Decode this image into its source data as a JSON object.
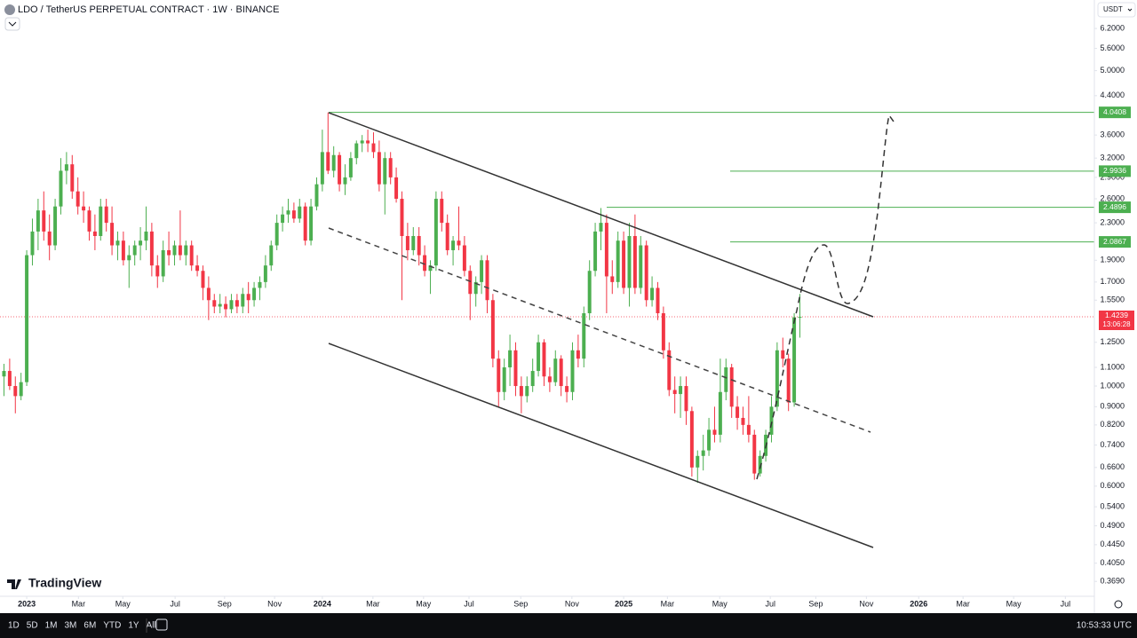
{
  "chart_data": {
    "type": "candlestick",
    "title": "LDO / TetherUS PERPETUAL CONTRACT · 1W · BINANCE",
    "currency": "USDT",
    "brand": "TradingView",
    "timeframes": [
      "1D",
      "5D",
      "1M",
      "3M",
      "6M",
      "YTD",
      "1Y",
      "All"
    ],
    "clock": "10:53:33 UTC",
    "log_scale": true,
    "up_color": "#4caf50",
    "down_color": "#f23645",
    "level_color": "#4caf50",
    "ylim": [
      0.342,
      7.17
    ],
    "yticks": [
      {
        "value": 6.2,
        "label": "6.2000"
      },
      {
        "value": 5.6,
        "label": "5.6000"
      },
      {
        "value": 5.0,
        "label": "5.0000"
      },
      {
        "value": 4.4,
        "label": "4.4000"
      },
      {
        "value": 3.6,
        "label": "3.6000"
      },
      {
        "value": 3.2,
        "label": "3.2000"
      },
      {
        "value": 2.9,
        "label": "2.9000"
      },
      {
        "value": 2.6,
        "label": "2.6000"
      },
      {
        "value": 2.3,
        "label": "2.3000"
      },
      {
        "value": 1.9,
        "label": "1.9000"
      },
      {
        "value": 1.7,
        "label": "1.7000"
      },
      {
        "value": 1.55,
        "label": "1.5500"
      },
      {
        "value": 1.25,
        "label": "1.2500"
      },
      {
        "value": 1.1,
        "label": "1.1000"
      },
      {
        "value": 1.0,
        "label": "1.0000"
      },
      {
        "value": 0.9,
        "label": "0.9000"
      },
      {
        "value": 0.82,
        "label": "0.8200"
      },
      {
        "value": 0.74,
        "label": "0.7400"
      },
      {
        "value": 0.66,
        "label": "0.6600"
      },
      {
        "value": 0.6,
        "label": "0.6000"
      },
      {
        "value": 0.54,
        "label": "0.5400"
      },
      {
        "value": 0.49,
        "label": "0.4900"
      },
      {
        "value": 0.445,
        "label": "0.4450"
      },
      {
        "value": 0.405,
        "label": "0.4050"
      },
      {
        "value": 0.369,
        "label": "0.3690"
      }
    ],
    "xlim": [
      -4.7,
      187.8
    ],
    "xticks": [
      {
        "value": 0,
        "label": "2023"
      },
      {
        "value": 9.1,
        "label": "Mar"
      },
      {
        "value": 16.9,
        "label": "May"
      },
      {
        "value": 26.1,
        "label": "Jul"
      },
      {
        "value": 34.8,
        "label": "Sep"
      },
      {
        "value": 43.6,
        "label": "Nov"
      },
      {
        "value": 52,
        "label": "2024"
      },
      {
        "value": 60.9,
        "label": "Mar"
      },
      {
        "value": 69.8,
        "label": "May"
      },
      {
        "value": 77.8,
        "label": "Jul"
      },
      {
        "value": 86.9,
        "label": "Sep"
      },
      {
        "value": 95.9,
        "label": "Nov"
      },
      {
        "value": 105,
        "label": "2025"
      },
      {
        "value": 112.7,
        "label": "Mar"
      },
      {
        "value": 121.9,
        "label": "May"
      },
      {
        "value": 130.8,
        "label": "Jul"
      },
      {
        "value": 138.8,
        "label": "Sep"
      },
      {
        "value": 147.7,
        "label": "Nov"
      },
      {
        "value": 156.9,
        "label": "2026"
      },
      {
        "value": 164.7,
        "label": "Mar"
      },
      {
        "value": 173.6,
        "label": "May"
      },
      {
        "value": 182.7,
        "label": "Jul"
      }
    ],
    "levels": [
      4.0408,
      2.9936,
      2.4896,
      2.0867
    ],
    "last_price": 1.4239,
    "countdown": "13:06:28",
    "x": [
      -4,
      -3,
      -2,
      -1,
      0,
      1,
      2,
      3,
      4,
      5,
      6,
      7,
      8,
      9,
      10,
      11,
      12,
      13,
      14,
      15,
      16,
      17,
      18,
      19,
      20,
      21,
      22,
      23,
      24,
      25,
      26,
      27,
      28,
      29,
      30,
      31,
      32,
      33,
      34,
      35,
      36,
      37,
      38,
      39,
      40,
      41,
      42,
      43,
      44,
      45,
      46,
      47,
      48,
      49,
      50,
      51,
      52,
      53,
      54,
      55,
      56,
      57,
      58,
      59,
      60,
      61,
      62,
      63,
      64,
      65,
      66,
      67,
      68,
      69,
      70,
      71,
      72,
      73,
      74,
      75,
      76,
      77,
      78,
      79,
      80,
      81,
      82,
      83,
      84,
      85,
      86,
      87,
      88,
      89,
      90,
      91,
      92,
      93,
      94,
      95,
      96,
      97,
      98,
      99,
      100,
      101,
      102,
      103,
      104,
      105,
      106,
      107,
      108,
      109,
      110,
      111,
      112,
      113,
      114,
      115,
      116,
      117,
      118,
      119,
      120,
      121,
      122,
      123,
      124,
      125,
      126,
      127,
      128,
      129,
      130,
      131,
      132,
      133,
      134,
      135,
      136
    ],
    "ohlc": [
      [
        1.05,
        1.12,
        0.95,
        1.08
      ],
      [
        1.08,
        1.15,
        0.98,
        1.0
      ],
      [
        1.0,
        1.05,
        0.87,
        0.95
      ],
      [
        0.95,
        1.07,
        0.93,
        1.02
      ],
      [
        1.02,
        2.0,
        1.0,
        1.95
      ],
      [
        1.95,
        2.35,
        1.85,
        2.2
      ],
      [
        2.2,
        2.6,
        2.0,
        2.45
      ],
      [
        2.45,
        2.7,
        2.1,
        2.2
      ],
      [
        2.2,
        2.4,
        1.9,
        2.05
      ],
      [
        2.05,
        2.6,
        2.0,
        2.5
      ],
      [
        2.5,
        3.2,
        2.4,
        3.0
      ],
      [
        3.0,
        3.3,
        2.8,
        3.1
      ],
      [
        3.1,
        3.25,
        2.6,
        2.7
      ],
      [
        2.7,
        2.9,
        2.4,
        2.5
      ],
      [
        2.5,
        2.7,
        2.3,
        2.45
      ],
      [
        2.45,
        2.5,
        2.1,
        2.2
      ],
      [
        2.2,
        2.4,
        2.0,
        2.15
      ],
      [
        2.15,
        2.6,
        2.1,
        2.5
      ],
      [
        2.5,
        2.6,
        2.2,
        2.3
      ],
      [
        2.3,
        2.5,
        1.95,
        2.05
      ],
      [
        2.05,
        2.2,
        1.9,
        2.1
      ],
      [
        2.1,
        2.2,
        1.85,
        1.9
      ],
      [
        1.9,
        2.05,
        1.65,
        1.95
      ],
      [
        1.95,
        2.1,
        1.85,
        2.05
      ],
      [
        2.05,
        2.25,
        1.9,
        2.1
      ],
      [
        2.1,
        2.5,
        2.0,
        2.2
      ],
      [
        2.2,
        2.3,
        1.75,
        1.85
      ],
      [
        1.85,
        1.95,
        1.65,
        1.75
      ],
      [
        1.75,
        2.1,
        1.7,
        2.0
      ],
      [
        2.0,
        2.2,
        1.85,
        1.95
      ],
      [
        1.95,
        2.1,
        1.85,
        2.05
      ],
      [
        2.05,
        2.45,
        1.9,
        1.95
      ],
      [
        1.95,
        2.1,
        1.85,
        2.05
      ],
      [
        2.05,
        2.1,
        1.8,
        1.85
      ],
      [
        1.85,
        1.95,
        1.75,
        1.8
      ],
      [
        1.8,
        1.85,
        1.55,
        1.65
      ],
      [
        1.65,
        1.75,
        1.4,
        1.55
      ],
      [
        1.55,
        1.6,
        1.45,
        1.5
      ],
      [
        1.5,
        1.6,
        1.45,
        1.52
      ],
      [
        1.52,
        1.58,
        1.42,
        1.48
      ],
      [
        1.48,
        1.6,
        1.45,
        1.55
      ],
      [
        1.55,
        1.6,
        1.45,
        1.5
      ],
      [
        1.5,
        1.65,
        1.45,
        1.6
      ],
      [
        1.6,
        1.7,
        1.45,
        1.55
      ],
      [
        1.55,
        1.7,
        1.5,
        1.65
      ],
      [
        1.65,
        1.75,
        1.55,
        1.7
      ],
      [
        1.7,
        1.95,
        1.65,
        1.85
      ],
      [
        1.85,
        2.1,
        1.8,
        2.05
      ],
      [
        2.05,
        2.4,
        2.0,
        2.3
      ],
      [
        2.3,
        2.5,
        2.2,
        2.4
      ],
      [
        2.4,
        2.6,
        2.3,
        2.45
      ],
      [
        2.45,
        2.55,
        2.3,
        2.35
      ],
      [
        2.35,
        2.6,
        2.3,
        2.5
      ],
      [
        2.5,
        2.55,
        2.05,
        2.1
      ],
      [
        2.1,
        2.6,
        2.05,
        2.5
      ],
      [
        2.5,
        2.9,
        2.45,
        2.8
      ],
      [
        2.8,
        3.7,
        2.7,
        3.3
      ],
      [
        3.3,
        4.04,
        2.95,
        3.0
      ],
      [
        3.0,
        3.4,
        2.9,
        3.25
      ],
      [
        3.25,
        3.3,
        2.7,
        2.8
      ],
      [
        2.8,
        3.1,
        2.65,
        2.9
      ],
      [
        2.9,
        3.3,
        2.85,
        3.2
      ],
      [
        3.2,
        3.5,
        3.1,
        3.45
      ],
      [
        3.45,
        3.6,
        3.3,
        3.5
      ],
      [
        3.5,
        3.7,
        3.3,
        3.45
      ],
      [
        3.45,
        3.65,
        3.2,
        3.3
      ],
      [
        3.3,
        3.5,
        2.7,
        2.8
      ],
      [
        2.8,
        3.3,
        2.4,
        3.2
      ],
      [
        3.2,
        3.3,
        2.8,
        2.9
      ],
      [
        2.9,
        3.05,
        2.55,
        2.6
      ],
      [
        2.6,
        2.7,
        1.55,
        2.15
      ],
      [
        2.15,
        2.3,
        1.9,
        2.0
      ],
      [
        2.0,
        2.25,
        1.95,
        2.15
      ],
      [
        2.15,
        2.25,
        1.85,
        1.95
      ],
      [
        1.95,
        2.05,
        1.75,
        1.8
      ],
      [
        1.8,
        1.9,
        1.6,
        1.85
      ],
      [
        1.85,
        2.7,
        1.8,
        2.6
      ],
      [
        2.6,
        2.7,
        2.2,
        2.3
      ],
      [
        2.3,
        2.4,
        1.95,
        2.0
      ],
      [
        2.0,
        2.15,
        1.85,
        2.1
      ],
      [
        2.1,
        2.5,
        2.0,
        2.05
      ],
      [
        2.05,
        2.15,
        1.75,
        1.8
      ],
      [
        1.8,
        1.85,
        1.4,
        1.6
      ],
      [
        1.6,
        1.75,
        1.5,
        1.7
      ],
      [
        1.7,
        1.95,
        1.6,
        1.9
      ],
      [
        1.9,
        1.95,
        1.45,
        1.55
      ],
      [
        1.55,
        1.6,
        1.1,
        1.15
      ],
      [
        1.15,
        1.2,
        0.9,
        0.97
      ],
      [
        0.97,
        1.15,
        0.93,
        1.1
      ],
      [
        1.1,
        1.3,
        1.0,
        1.2
      ],
      [
        1.2,
        1.25,
        0.95,
        1.0
      ],
      [
        1.0,
        1.05,
        0.87,
        0.95
      ],
      [
        0.95,
        1.05,
        0.92,
        1.0
      ],
      [
        1.0,
        1.15,
        0.97,
        1.08
      ],
      [
        1.08,
        1.3,
        1.05,
        1.25
      ],
      [
        1.25,
        1.27,
        1.0,
        1.05
      ],
      [
        1.05,
        1.1,
        0.97,
        1.02
      ],
      [
        1.02,
        1.2,
        1.0,
        1.15
      ],
      [
        1.15,
        1.17,
        0.95,
        1.0
      ],
      [
        1.0,
        1.05,
        0.92,
        0.97
      ],
      [
        0.97,
        1.25,
        0.93,
        1.2
      ],
      [
        1.2,
        1.3,
        1.1,
        1.15
      ],
      [
        1.15,
        1.5,
        1.1,
        1.45
      ],
      [
        1.45,
        1.9,
        1.4,
        1.8
      ],
      [
        1.8,
        2.3,
        1.75,
        2.2
      ],
      [
        2.2,
        2.48,
        2.0,
        2.3
      ],
      [
        2.3,
        2.4,
        1.45,
        1.75
      ],
      [
        1.75,
        1.9,
        1.6,
        1.7
      ],
      [
        1.7,
        2.2,
        1.65,
        2.1
      ],
      [
        2.1,
        2.2,
        1.6,
        1.65
      ],
      [
        1.65,
        2.3,
        1.5,
        2.15
      ],
      [
        2.15,
        2.4,
        1.6,
        1.65
      ],
      [
        1.65,
        2.15,
        1.6,
        2.05
      ],
      [
        2.05,
        2.1,
        1.5,
        1.55
      ],
      [
        1.55,
        1.75,
        1.5,
        1.65
      ],
      [
        1.65,
        1.7,
        1.4,
        1.45
      ],
      [
        1.45,
        1.5,
        1.15,
        1.2
      ],
      [
        1.2,
        1.25,
        0.95,
        0.98
      ],
      [
        0.98,
        1.05,
        0.87,
        0.96
      ],
      [
        0.96,
        1.05,
        0.85,
        1.0
      ],
      [
        1.0,
        1.05,
        0.82,
        0.88
      ],
      [
        0.88,
        0.9,
        0.63,
        0.66
      ],
      [
        0.66,
        0.72,
        0.61,
        0.7
      ],
      [
        0.7,
        0.78,
        0.65,
        0.72
      ],
      [
        0.72,
        0.85,
        0.7,
        0.8
      ],
      [
        0.8,
        0.9,
        0.75,
        0.78
      ],
      [
        0.78,
        1.15,
        0.75,
        0.97
      ],
      [
        0.97,
        1.15,
        0.93,
        1.1
      ],
      [
        1.1,
        1.12,
        0.85,
        0.9
      ],
      [
        0.9,
        0.95,
        0.8,
        0.85
      ],
      [
        0.85,
        0.9,
        0.78,
        0.82
      ],
      [
        0.82,
        0.95,
        0.75,
        0.78
      ],
      [
        0.78,
        0.8,
        0.62,
        0.64
      ],
      [
        0.64,
        0.72,
        0.63,
        0.7
      ],
      [
        0.7,
        0.8,
        0.68,
        0.78
      ],
      [
        0.78,
        0.95,
        0.75,
        0.9
      ],
      [
        0.9,
        1.25,
        0.88,
        1.2
      ],
      [
        1.2,
        1.28,
        1.1,
        1.15
      ],
      [
        1.15,
        1.18,
        0.88,
        0.92
      ],
      [
        0.92,
        1.45,
        0.9,
        1.42
      ],
      [
        1.42,
        1.6,
        1.28,
        1.4239
      ]
    ]
  }
}
